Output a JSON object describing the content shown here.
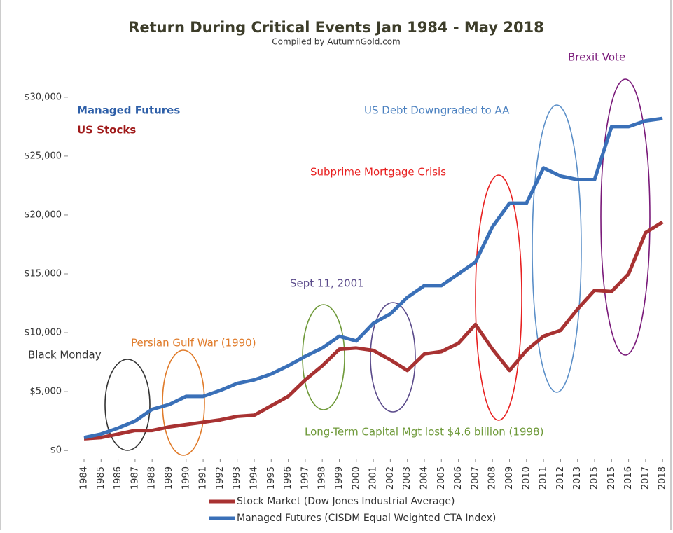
{
  "chart_data": {
    "type": "line",
    "title": "Return During Critical Events Jan 1984 - May 2018",
    "subtitle": "Compiled by AutumnGold.com",
    "categories": [
      "1984",
      "1985",
      "1986",
      "1987",
      "1988",
      "1989",
      "1990",
      "1991",
      "1992",
      "1993",
      "1994",
      "1995",
      "1996",
      "1997",
      "1998",
      "1999",
      "2000",
      "2001",
      "2002",
      "2003",
      "2004",
      "2005",
      "2006",
      "2007",
      "2008",
      "2009",
      "2010",
      "2011",
      "2012",
      "2013",
      "2015",
      "2015",
      "2016",
      "2017",
      "2018"
    ],
    "series": [
      {
        "name": "Stock Market (Dow Jones Industrial Average)",
        "color": "#a83232",
        "values": [
          1000,
          1100,
          1400,
          1700,
          1700,
          2000,
          2200,
          2400,
          2600,
          2900,
          3000,
          3800,
          4600,
          6000,
          7200,
          8600,
          8700,
          8500,
          7700,
          6800,
          8200,
          8400,
          9100,
          10700,
          8600,
          6800,
          8500,
          9700,
          10200,
          12000,
          13600,
          13500,
          15000,
          18500,
          19400
        ]
      },
      {
        "name": "Managed Futures (CISDM Equal Weighted CTA Index)",
        "color": "#3a70b8",
        "values": [
          1100,
          1400,
          1900,
          2500,
          3500,
          3900,
          4600,
          4600,
          5100,
          5700,
          6000,
          6500,
          7200,
          8000,
          8700,
          9700,
          9300,
          10800,
          11600,
          13000,
          14000,
          14000,
          15000,
          16000,
          19000,
          21000,
          21000,
          24000,
          23300,
          23000,
          23000,
          27500,
          27500,
          28000,
          28200
        ]
      }
    ],
    "ylim": [
      -1000,
      33500
    ],
    "yticks": [
      {
        "value": 0,
        "label": "$0"
      },
      {
        "value": 5000,
        "label": "$5,000"
      },
      {
        "value": 10000,
        "label": "$10,000"
      },
      {
        "value": 15000,
        "label": "$15,000"
      },
      {
        "value": 20000,
        "label": "$20,000"
      },
      {
        "value": 25000,
        "label": "$25,000"
      },
      {
        "value": 30000,
        "label": "$30,000"
      }
    ],
    "annotations": [
      "Managed Futures",
      "US Stocks",
      "Black Monday",
      "Persian Gulf War (1990)",
      "Long-Term Capital Mgt lost $4.6 billion (1998)",
      "Sept 11, 2001",
      "Subprime Mortgage Crisis",
      "US Debt Downgraded to AA",
      "Brexit Vote"
    ]
  }
}
